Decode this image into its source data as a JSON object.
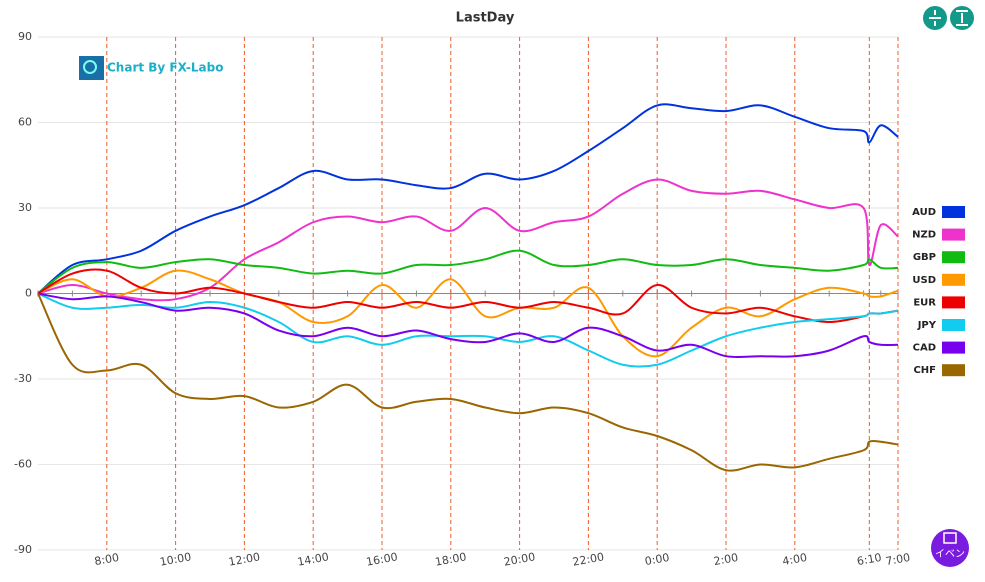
{
  "chart_data": {
    "type": "line",
    "title": "LastDay",
    "logo": "Chart By FX-Labo",
    "event_button": "イベン",
    "x": [
      "6:00",
      "7:00",
      "8:00",
      "9:00",
      "10:00",
      "11:00",
      "12:00",
      "13:00",
      "14:00",
      "15:00",
      "16:00",
      "17:00",
      "18:00",
      "19:00",
      "20:00",
      "21:00",
      "22:00",
      "23:00",
      "0:00",
      "1:00",
      "2:00",
      "3:00",
      "4:00",
      "5:00",
      "6:00",
      "6:10",
      "6:30",
      "7:00"
    ],
    "xticks": [
      "8:00",
      "10:00",
      "12:00",
      "14:00",
      "16:00",
      "18:00",
      "20:00",
      "22:00",
      "0:00",
      "2:00",
      "4:00",
      "6:10",
      "7:00"
    ],
    "ylim": [
      -90,
      90
    ],
    "yticks": [
      -90,
      -60,
      -30,
      0,
      30,
      60,
      90
    ],
    "grid": true,
    "series": [
      {
        "name": "AUD",
        "color": "#0033dd",
        "values": [
          0,
          10,
          12,
          15,
          22,
          27,
          31,
          37,
          43,
          40,
          40,
          38,
          37,
          42,
          40,
          43,
          50,
          58,
          66,
          65,
          64,
          66,
          62,
          58,
          57,
          53,
          59,
          55
        ]
      },
      {
        "name": "NZD",
        "color": "#ee33cc",
        "values": [
          0,
          3,
          0,
          -2,
          -2,
          2,
          12,
          18,
          25,
          27,
          25,
          27,
          22,
          30,
          22,
          25,
          27,
          35,
          40,
          36,
          35,
          36,
          33,
          30,
          30,
          10,
          24,
          20
        ]
      },
      {
        "name": "GBP",
        "color": "#11bb11",
        "values": [
          0,
          9,
          11,
          9,
          11,
          12,
          10,
          9,
          7,
          8,
          7,
          10,
          10,
          12,
          15,
          10,
          10,
          12,
          10,
          10,
          12,
          10,
          9,
          8,
          10,
          12,
          9,
          9
        ]
      },
      {
        "name": "USD",
        "color": "#ff9900",
        "values": [
          0,
          5,
          -1,
          2,
          8,
          5,
          0,
          -3,
          -10,
          -8,
          3,
          -5,
          5,
          -8,
          -5,
          -5,
          2,
          -15,
          -22,
          -12,
          -5,
          -8,
          -2,
          2,
          0,
          -1,
          -1,
          1
        ]
      },
      {
        "name": "EUR",
        "color": "#ee0000",
        "values": [
          0,
          7,
          8,
          2,
          0,
          2,
          0,
          -3,
          -5,
          -3,
          -5,
          -3,
          -5,
          -3,
          -5,
          -3,
          -5,
          -7,
          3,
          -5,
          -7,
          -5,
          -8,
          -10,
          -8,
          -7,
          -7,
          -6
        ]
      },
      {
        "name": "JPY",
        "color": "#11ccee",
        "values": [
          0,
          -5,
          -5,
          -4,
          -5,
          -3,
          -5,
          -10,
          -17,
          -15,
          -18,
          -15,
          -15,
          -15,
          -17,
          -15,
          -20,
          -25,
          -25,
          -20,
          -15,
          -12,
          -10,
          -9,
          -8,
          -7,
          -7,
          -6
        ]
      },
      {
        "name": "CAD",
        "color": "#7700ee",
        "values": [
          0,
          -2,
          -1,
          -3,
          -6,
          -5,
          -7,
          -13,
          -15,
          -12,
          -15,
          -13,
          -16,
          -17,
          -14,
          -17,
          -12,
          -15,
          -20,
          -18,
          -22,
          -22,
          -22,
          -20,
          -15,
          -17,
          -18,
          -18
        ]
      },
      {
        "name": "CHF",
        "color": "#996600",
        "values": [
          0,
          -25,
          -27,
          -25,
          -35,
          -37,
          -36,
          -40,
          -38,
          -32,
          -40,
          -38,
          -37,
          -40,
          -42,
          -40,
          -42,
          -47,
          -50,
          -55,
          -62,
          -60,
          -61,
          -58,
          -55,
          -52,
          -52,
          -53
        ]
      }
    ]
  }
}
